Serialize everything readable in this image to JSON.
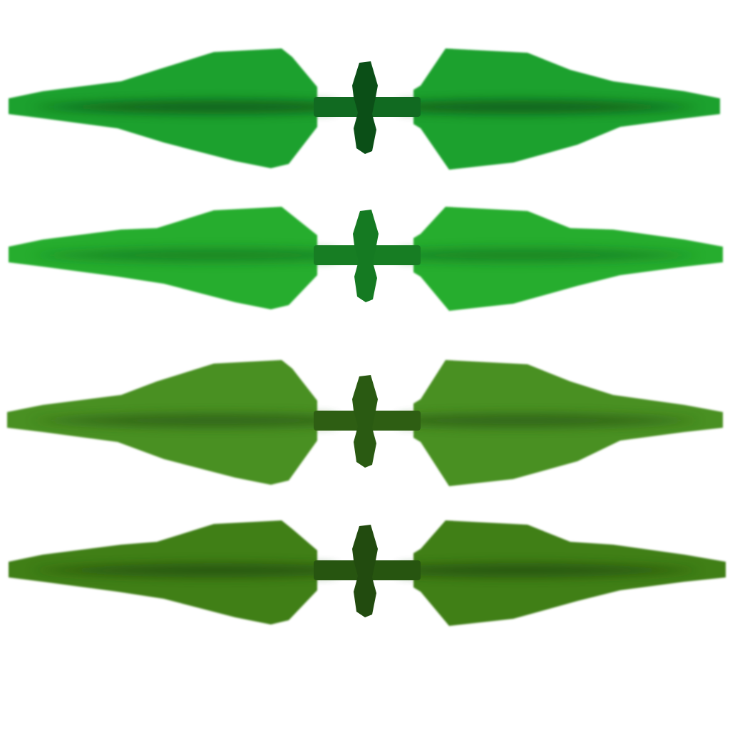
{
  "sheet": {
    "background": "#ffffff",
    "sprites": [
      {
        "name": "leaf-sprite-bright-green",
        "icon": "double-blade-leaf-icon",
        "leaf_color": "#1fa12f",
        "vein_color": "#0b4f17",
        "stem_color": "#116a21"
      },
      {
        "name": "leaf-sprite-light-green",
        "icon": "double-blade-leaf-icon",
        "leaf_color": "#27ad2d",
        "vein_color": "#157a22",
        "stem_color": "#177d23"
      },
      {
        "name": "leaf-sprite-olive-green",
        "icon": "double-blade-leaf-icon",
        "leaf_color": "#4a9020",
        "vein_color": "#2a5a12",
        "stem_color": "#2e5e13"
      },
      {
        "name": "leaf-sprite-dark-olive",
        "icon": "double-blade-leaf-icon",
        "leaf_color": "#3f7f18",
        "vein_color": "#224b0f",
        "stem_color": "#275510"
      }
    ]
  }
}
